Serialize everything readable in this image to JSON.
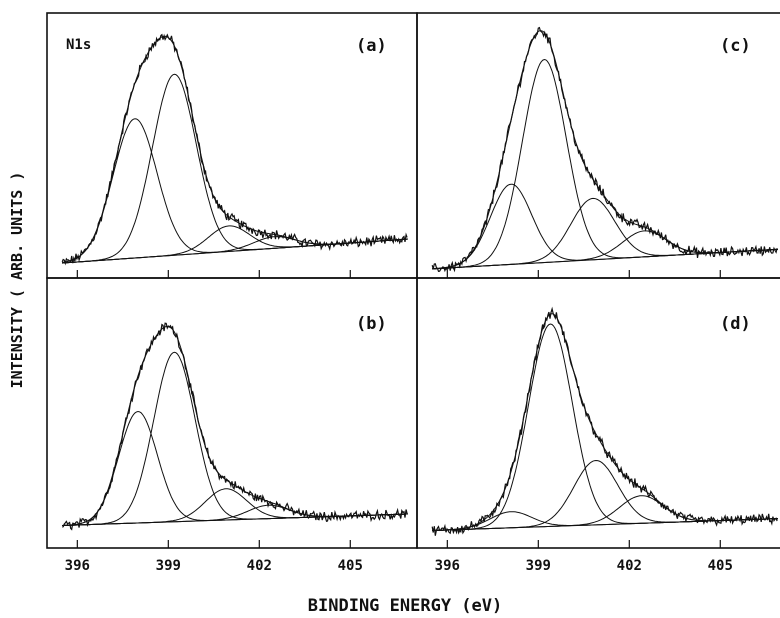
{
  "chart_data": {
    "type": "line",
    "xlabel": "BINDING ENERGY (eV)",
    "ylabel": "INTENSITY ( ARB. UNITS )",
    "xlim": [
      395.0,
      407.2
    ],
    "x_ticks": [
      "396",
      "399",
      "402",
      "405"
    ],
    "species_label": "N1s",
    "panels": [
      {
        "id": "a",
        "label": "(a)",
        "components": [
          {
            "center": 397.9,
            "height": 0.6,
            "fwhm": 1.7
          },
          {
            "center": 399.2,
            "height": 0.78,
            "fwhm": 1.7
          },
          {
            "center": 401.0,
            "height": 0.11,
            "fwhm": 1.6
          },
          {
            "center": 402.5,
            "height": 0.05,
            "fwhm": 1.6
          }
        ],
        "baseline": [
          0.0,
          0.1
        ]
      },
      {
        "id": "b",
        "label": "(b)",
        "components": [
          {
            "center": 398.0,
            "height": 0.5,
            "fwhm": 1.5
          },
          {
            "center": 399.2,
            "height": 0.76,
            "fwhm": 1.6
          },
          {
            "center": 400.9,
            "height": 0.14,
            "fwhm": 1.6
          },
          {
            "center": 402.3,
            "height": 0.06,
            "fwhm": 1.6
          }
        ],
        "baseline": [
          0.0,
          0.05
        ]
      },
      {
        "id": "c",
        "label": "(c)",
        "components": [
          {
            "center": 398.1,
            "height": 0.34,
            "fwhm": 1.6
          },
          {
            "center": 399.2,
            "height": 0.86,
            "fwhm": 1.7
          },
          {
            "center": 400.8,
            "height": 0.26,
            "fwhm": 1.7
          },
          {
            "center": 402.5,
            "height": 0.11,
            "fwhm": 1.7
          }
        ],
        "baseline": [
          0.0,
          0.08
        ]
      },
      {
        "id": "d",
        "label": "(d)",
        "components": [
          {
            "center": 398.1,
            "height": 0.07,
            "fwhm": 1.6
          },
          {
            "center": 399.4,
            "height": 0.88,
            "fwhm": 1.7
          },
          {
            "center": 400.9,
            "height": 0.28,
            "fwhm": 1.7
          },
          {
            "center": 402.4,
            "height": 0.12,
            "fwhm": 1.7
          }
        ],
        "baseline": [
          0.0,
          0.05
        ]
      }
    ]
  }
}
